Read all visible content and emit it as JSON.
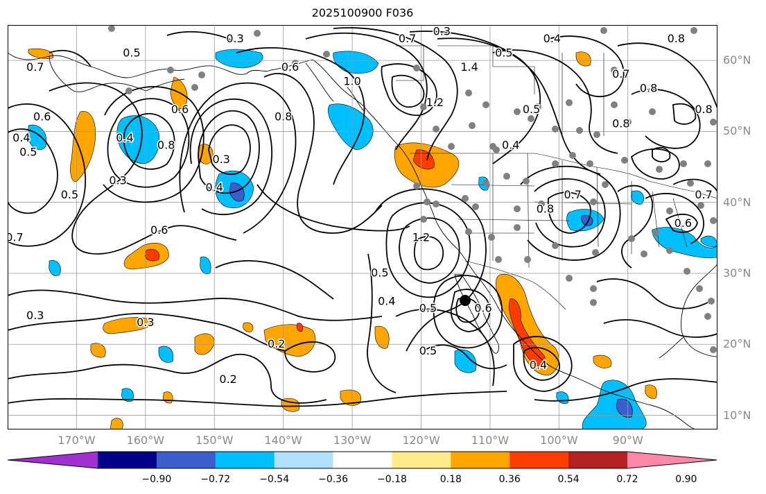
{
  "title": "2025100900 F036",
  "map": {
    "lon_range": [
      -180,
      -77
    ],
    "lat_range": [
      8,
      65
    ],
    "lon_ticks": [
      {
        "value": -170,
        "label": "170°W"
      },
      {
        "value": -160,
        "label": "160°W"
      },
      {
        "value": -150,
        "label": "150°W"
      },
      {
        "value": -140,
        "label": "140°W"
      },
      {
        "value": -130,
        "label": "130°W"
      },
      {
        "value": -120,
        "label": "120°W"
      },
      {
        "value": -110,
        "label": "110°W"
      },
      {
        "value": -100,
        "label": "100°W"
      },
      {
        "value": -90,
        "label": "90°W"
      }
    ],
    "lat_ticks": [
      {
        "value": 60,
        "label": "60°N"
      },
      {
        "value": 50,
        "label": "50°N"
      },
      {
        "value": 40,
        "label": "40°N"
      },
      {
        "value": 30,
        "label": "30°N"
      },
      {
        "value": 20,
        "label": "20°N"
      },
      {
        "value": 10,
        "label": "10°N"
      }
    ],
    "contour_labels": [
      {
        "text": "0.3",
        "lon": -147,
        "lat": 63
      },
      {
        "text": "0.5",
        "lon": -162,
        "lat": 61
      },
      {
        "text": "0.7",
        "lon": -176,
        "lat": 59
      },
      {
        "text": "0.6",
        "lon": -175,
        "lat": 52
      },
      {
        "text": "0.5",
        "lon": -177,
        "lat": 47
      },
      {
        "text": "0.4",
        "lon": -178,
        "lat": 49
      },
      {
        "text": "0.4",
        "lon": -163,
        "lat": 49
      },
      {
        "text": "0.8",
        "lon": -157,
        "lat": 48
      },
      {
        "text": "0.6",
        "lon": -155,
        "lat": 53
      },
      {
        "text": "0.3",
        "lon": -164,
        "lat": 43
      },
      {
        "text": "0.5",
        "lon": -171,
        "lat": 41
      },
      {
        "text": "0.7",
        "lon": -179,
        "lat": 35
      },
      {
        "text": "0.6",
        "lon": -158,
        "lat": 36
      },
      {
        "text": "0.3",
        "lon": -149,
        "lat": 46
      },
      {
        "text": "0.4",
        "lon": -150,
        "lat": 42
      },
      {
        "text": "0.6",
        "lon": -139,
        "lat": 59
      },
      {
        "text": "0.8",
        "lon": -140,
        "lat": 52
      },
      {
        "text": "1.0",
        "lon": -130,
        "lat": 57
      },
      {
        "text": "1.2",
        "lon": -118,
        "lat": 54
      },
      {
        "text": "1.4",
        "lon": -113,
        "lat": 59
      },
      {
        "text": "0.7",
        "lon": -122,
        "lat": 63
      },
      {
        "text": "0.3",
        "lon": -117,
        "lat": 64
      },
      {
        "text": "0.5",
        "lon": -108,
        "lat": 61
      },
      {
        "text": "0.4",
        "lon": -101,
        "lat": 63
      },
      {
        "text": "0.8",
        "lon": -83,
        "lat": 63
      },
      {
        "text": "0.7",
        "lon": -91,
        "lat": 58
      },
      {
        "text": "0.8",
        "lon": -87,
        "lat": 56
      },
      {
        "text": "0.5",
        "lon": -104,
        "lat": 53
      },
      {
        "text": "0.8",
        "lon": -91,
        "lat": 51
      },
      {
        "text": "0.4",
        "lon": -107,
        "lat": 48
      },
      {
        "text": "0.8",
        "lon": -102,
        "lat": 39
      },
      {
        "text": "0.7",
        "lon": -98,
        "lat": 41
      },
      {
        "text": "0.6",
        "lon": -82,
        "lat": 37
      },
      {
        "text": "0.7",
        "lon": -79,
        "lat": 41
      },
      {
        "text": "0.8",
        "lon": -79,
        "lat": 53
      },
      {
        "text": "1.2",
        "lon": -120,
        "lat": 35
      },
      {
        "text": "0.5",
        "lon": -126,
        "lat": 30
      },
      {
        "text": "0.4",
        "lon": -125,
        "lat": 26
      },
      {
        "text": "0.5",
        "lon": -119,
        "lat": 25
      },
      {
        "text": "0.6",
        "lon": -111,
        "lat": 25
      },
      {
        "text": "0.5",
        "lon": -119,
        "lat": 19
      },
      {
        "text": "0.4",
        "lon": -103,
        "lat": 17
      },
      {
        "text": "0.3",
        "lon": -176,
        "lat": 24
      },
      {
        "text": "0.3",
        "lon": -160,
        "lat": 23
      },
      {
        "text": "0.2",
        "lon": -141,
        "lat": 20
      },
      {
        "text": "0.2",
        "lon": -148,
        "lat": 15
      }
    ]
  },
  "colorbar": {
    "colors": [
      "#a030d0",
      "#00008b",
      "#3a5fcd",
      "#00bfff",
      "#b0e2ff",
      "#ffffff",
      "#ffec8b",
      "#ffa500",
      "#ff3c00",
      "#b22222",
      "#ff88aa"
    ],
    "tick_labels": [
      "−0.90",
      "−0.72",
      "−0.54",
      "−0.36",
      "−0.18",
      "0.18",
      "0.36",
      "0.54",
      "0.72",
      "0.90"
    ]
  }
}
